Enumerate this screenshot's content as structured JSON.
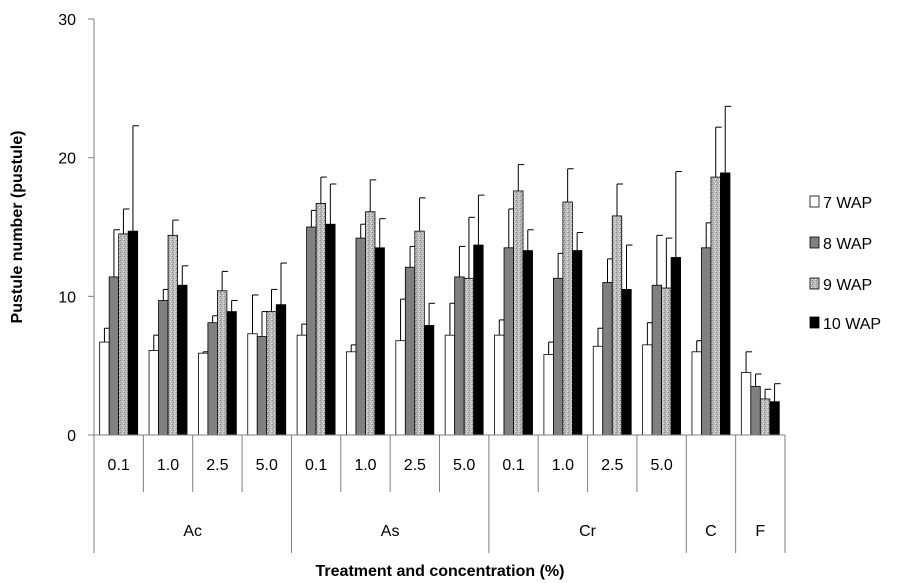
{
  "chart_data": {
    "type": "bar",
    "title": "",
    "ylabel": "Pustule number (pustule)",
    "xlabel": "Treatment and concentration (%)",
    "ylim": [
      0,
      30
    ],
    "yticks": [
      0,
      10,
      20,
      30
    ],
    "grid": false,
    "legend_position": "right",
    "groups": [
      {
        "label": "Ac",
        "categories": [
          "0.1",
          "1.0",
          "2.5",
          "5.0"
        ]
      },
      {
        "label": "As",
        "categories": [
          "0.1",
          "1.0",
          "2.5",
          "5.0"
        ]
      },
      {
        "label": "Cr",
        "categories": [
          "0.1",
          "1.0",
          "2.5",
          "5.0"
        ]
      },
      {
        "label": "C",
        "categories": [
          ""
        ]
      },
      {
        "label": "F",
        "categories": [
          ""
        ]
      }
    ],
    "series": [
      {
        "name": "7 WAP",
        "color": "#ffffff",
        "values": [
          6.7,
          6.1,
          5.9,
          7.3,
          7.2,
          6.0,
          6.8,
          7.2,
          7.2,
          5.8,
          6.4,
          6.5,
          6.0,
          4.5
        ],
        "errors": [
          1.0,
          1.1,
          0.1,
          2.8,
          0.8,
          0.5,
          3.0,
          2.3,
          1.1,
          0.9,
          1.3,
          1.6,
          0.8,
          1.5
        ]
      },
      {
        "name": "8 WAP",
        "color": "#808080",
        "values": [
          11.4,
          9.7,
          8.1,
          7.1,
          15.0,
          14.2,
          12.1,
          11.4,
          13.5,
          11.3,
          11.0,
          10.8,
          13.5,
          3.5
        ],
        "errors": [
          3.4,
          0.8,
          0.5,
          1.8,
          1.2,
          1.0,
          1.5,
          2.2,
          2.8,
          1.8,
          1.7,
          3.6,
          1.8,
          0.9
        ]
      },
      {
        "name": "9 WAP",
        "color": "#b3b3b3",
        "pattern": "speckle",
        "values": [
          14.5,
          14.4,
          10.4,
          8.9,
          16.7,
          16.1,
          14.7,
          11.3,
          17.6,
          16.8,
          15.8,
          10.6,
          18.6,
          2.6
        ],
        "errors": [
          1.8,
          1.1,
          1.4,
          1.6,
          1.9,
          2.3,
          2.4,
          4.4,
          1.9,
          2.4,
          2.3,
          3.6,
          3.6,
          0.7
        ]
      },
      {
        "name": "10 WAP",
        "color": "#000000",
        "values": [
          14.7,
          10.8,
          8.9,
          9.4,
          15.2,
          13.5,
          7.9,
          13.7,
          13.3,
          13.3,
          10.5,
          12.8,
          18.9,
          2.4
        ],
        "errors": [
          7.6,
          1.4,
          0.8,
          3.0,
          2.9,
          2.1,
          1.6,
          3.6,
          1.5,
          1.3,
          3.2,
          6.2,
          4.8,
          1.3
        ]
      }
    ]
  }
}
